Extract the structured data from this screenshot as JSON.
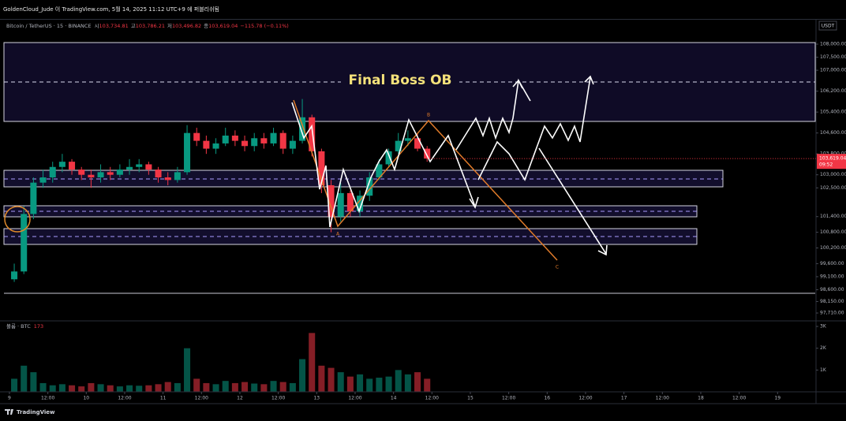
{
  "header": {
    "publisher": "GoldenCloud_Jude 이 TradingView.com, 5월 14, 2025 11:12 UTC+9 에 퍼블리쉬됨"
  },
  "chart_data": {
    "type": "candlestick",
    "symbol": "Bitcoin / TetherUS · 15 · BINANCE",
    "ohlc_legend": [
      {
        "key": "시",
        "text": "103,734.81"
      },
      {
        "key": "고",
        "text": "103,786.21"
      },
      {
        "key": "저",
        "text": "103,496.82"
      },
      {
        "key": "종",
        "text": "103,619.04"
      }
    ],
    "change": "−115.78 (−0.11%)",
    "axis_unit": "USDT",
    "annotation_title": "Final Boss OB",
    "wave_labels": [
      "A",
      "B",
      "C"
    ],
    "colors": {
      "up": "#089981",
      "down": "#f23645"
    },
    "x": [
      9.0625,
      9.1875,
      9.3125,
      9.4375,
      9.5625,
      9.6875,
      9.8125,
      9.9375,
      10.0625,
      10.1875,
      10.3125,
      10.4375,
      10.5625,
      10.6875,
      10.8125,
      10.9375,
      11.0625,
      11.1875,
      11.3125,
      11.4375,
      11.5625,
      11.6875,
      11.8125,
      11.9375,
      12.0625,
      12.1875,
      12.3125,
      12.4375,
      12.5625,
      12.6875,
      12.8125,
      12.9375,
      13.0625,
      13.1875,
      13.3125,
      13.4375,
      13.5625,
      13.6875,
      13.8125,
      13.9375,
      14.0625,
      14.1875,
      14.3125,
      14.4375
    ],
    "open": [
      99000,
      99300,
      101500,
      102700,
      102900,
      103300,
      103500,
      103200,
      103000,
      102900,
      103100,
      103000,
      103200,
      103300,
      103400,
      103200,
      102900,
      102800,
      103100,
      104600,
      104300,
      104000,
      104200,
      104500,
      104300,
      104100,
      104400,
      104200,
      104600,
      104000,
      104300,
      105200,
      103900,
      102600,
      101400,
      102300,
      101600,
      102200,
      102900,
      103400,
      103900,
      104300,
      104400,
      104000
    ],
    "high": [
      99600,
      101800,
      102900,
      103200,
      103500,
      103800,
      103600,
      103300,
      103200,
      103400,
      103300,
      103400,
      103600,
      103600,
      103500,
      103300,
      103100,
      103300,
      104900,
      104800,
      104500,
      104400,
      104800,
      104700,
      104500,
      104600,
      104600,
      104800,
      104700,
      104500,
      105900,
      105300,
      104000,
      102800,
      102700,
      102400,
      102400,
      103100,
      103600,
      104000,
      104600,
      104700,
      104600,
      104100
    ],
    "low": [
      98900,
      99200,
      101300,
      102500,
      102700,
      103100,
      103000,
      102800,
      102500,
      102700,
      102800,
      102900,
      103000,
      103100,
      103000,
      102700,
      102600,
      102700,
      103000,
      104100,
      103800,
      103800,
      104100,
      104100,
      103900,
      103900,
      104000,
      104100,
      103800,
      103800,
      104200,
      103700,
      102300,
      100800,
      101200,
      101400,
      101400,
      102000,
      102800,
      103300,
      103800,
      104100,
      103900,
      103500
    ],
    "close": [
      99300,
      101500,
      102700,
      102900,
      103300,
      103500,
      103200,
      103000,
      102900,
      103100,
      103000,
      103200,
      103300,
      103400,
      103200,
      102900,
      102800,
      103100,
      104600,
      104300,
      104000,
      104200,
      104500,
      104300,
      104100,
      104400,
      104200,
      104600,
      104000,
      104300,
      105200,
      103900,
      102600,
      101400,
      102300,
      101600,
      102200,
      102900,
      103400,
      103900,
      104300,
      104400,
      104000,
      103619.04
    ],
    "last_close_label": {
      "value": 103619.04,
      "label": "103,619.04"
    },
    "last_time": "09:52",
    "xlim": [
      8.877,
      19.49
    ],
    "xticks": [
      9,
      {
        "value": 9.5,
        "label": "12:00"
      },
      10,
      {
        "value": 10.5,
        "label": "12:00"
      },
      11,
      {
        "value": 11.5,
        "label": "12:00"
      },
      12,
      {
        "value": 12.5,
        "label": "12:00"
      },
      13,
      {
        "value": 13.5,
        "label": "12:00"
      },
      14,
      {
        "value": 14.5,
        "label": "12:00"
      },
      15,
      {
        "value": 15.5,
        "label": "12:00"
      },
      16,
      {
        "value": 16.5,
        "label": "12:00"
      },
      17,
      {
        "value": 17.5,
        "label": "12:00"
      },
      18,
      {
        "value": 18.5,
        "label": "12:00"
      },
      19
    ],
    "ylim": [
      97409,
      108905
    ],
    "yticks": [
      {
        "value": 108000,
        "label": "108,000.00"
      },
      {
        "value": 107500,
        "label": "107,500.00"
      },
      {
        "value": 107000,
        "label": "107,000.00"
      },
      {
        "value": 106200,
        "label": "106,200.00"
      },
      {
        "value": 105400,
        "label": "105,400.00"
      },
      {
        "value": 104600,
        "label": "104,600.00"
      },
      {
        "value": 103800,
        "label": "103,800.00"
      },
      {
        "value": 103000,
        "label": "103,000.00"
      },
      {
        "value": 102500,
        "label": "102,500.00"
      },
      {
        "value": 101400,
        "label": "101,400.00"
      },
      {
        "value": 100800,
        "label": "100,800.00"
      },
      {
        "value": 100200,
        "label": "100,200.00"
      },
      {
        "value": 99600,
        "label": "99,600.00"
      },
      {
        "value": 99100,
        "label": "99,100.00"
      },
      {
        "value": 98600,
        "label": "98,600.00"
      },
      {
        "value": 98150,
        "label": "98,150.00"
      },
      {
        "value": 97710,
        "label": "97,710.00"
      }
    ],
    "volume": {
      "title": "볼륨 · BTC",
      "last": 173,
      "values": [
        600,
        1200,
        900,
        400,
        300,
        350,
        300,
        250,
        400,
        350,
        300,
        250,
        300,
        280,
        300,
        350,
        450,
        400,
        2000,
        600,
        400,
        350,
        500,
        400,
        450,
        380,
        350,
        500,
        450,
        400,
        1500,
        2700,
        1200,
        1100,
        900,
        700,
        800,
        600,
        650,
        700,
        1000,
        800,
        900,
        600
      ],
      "ylim": [
        0,
        3255
      ],
      "yticks": [
        {
          "value": 3000,
          "label": "3K"
        },
        {
          "value": 2000,
          "label": "2K"
        },
        {
          "value": 1000,
          "label": "1K"
        }
      ]
    }
  },
  "footer": {
    "brand": "TradingView"
  }
}
